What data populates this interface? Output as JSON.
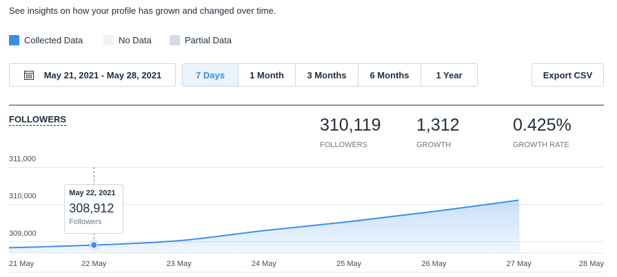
{
  "intro": "See insights on how your profile has grown and changed over time.",
  "legend": [
    {
      "label": "Collected Data",
      "color": "#3b8fe8"
    },
    {
      "label": "No Data",
      "color": "#eef2f7"
    },
    {
      "label": "Partial Data",
      "color": "#d3dce7"
    }
  ],
  "date_range": "May 21, 2021 - May 28, 2021",
  "ranges": [
    "7 Days",
    "1 Month",
    "3 Months",
    "6 Months",
    "1 Year"
  ],
  "export": "Export CSV",
  "section": "FOLLOWERS",
  "stats": [
    {
      "value": "310,119",
      "label": "FOLLOWERS"
    },
    {
      "value": "1,312",
      "label": "GROWTH"
    },
    {
      "value": "0.425%",
      "label": "GROWTH RATE"
    }
  ],
  "chart_data": {
    "type": "area",
    "categories": [
      "21 May",
      "22 May",
      "23 May",
      "24 May",
      "25 May",
      "26 May",
      "27 May",
      "28 May"
    ],
    "series": [
      {
        "name": "Followers",
        "color": "#3b8fe8",
        "values": [
          308840,
          308912,
          309030,
          309300,
          309540,
          309815,
          310119,
          null
        ],
        "value_labels": [
          null,
          "308,912",
          null,
          null,
          null,
          null,
          null,
          null
        ]
      }
    ],
    "ylim": [
      308700,
      311250
    ],
    "yticks": [
      {
        "value": 309000,
        "label": "309,000"
      },
      {
        "value": 310000,
        "label": "310,000"
      },
      {
        "value": 311000,
        "label": "311,000"
      }
    ],
    "grid": true,
    "tooltip": {
      "title": "May 22, 2021"
    }
  }
}
